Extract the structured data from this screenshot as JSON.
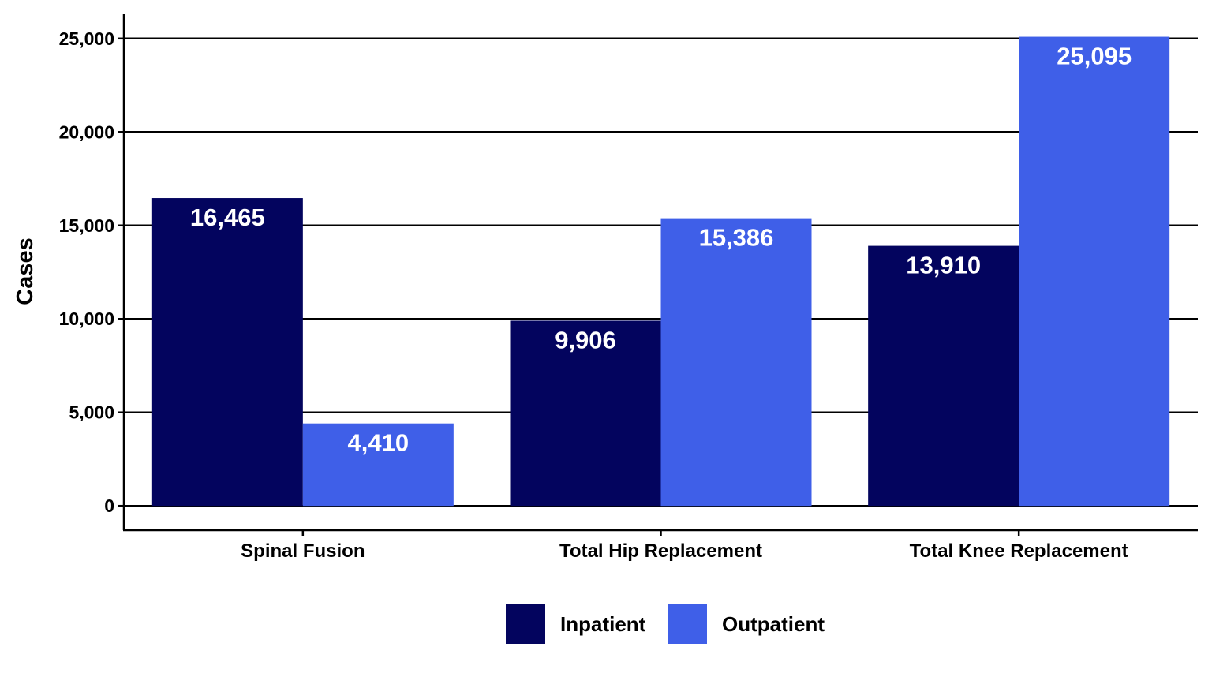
{
  "chart_data": {
    "type": "bar",
    "title": "",
    "xlabel": "",
    "ylabel": "Cases",
    "categories": [
      "Spinal Fusion",
      "Total Hip Replacement",
      "Total Knee Replacement"
    ],
    "series": [
      {
        "name": "Inpatient",
        "color": "#03045e",
        "values": [
          16465,
          9906,
          13910
        ],
        "labels": [
          "16,465",
          "9,906",
          "13,910"
        ]
      },
      {
        "name": "Outpatient",
        "color": "#3f5fe8",
        "values": [
          4410,
          15386,
          25095
        ],
        "labels": [
          "4,410",
          "15,386",
          "25,095"
        ]
      }
    ],
    "ylim": [
      -1300,
      26300
    ],
    "yticks": [
      0,
      5000,
      10000,
      15000,
      20000,
      25000
    ],
    "ytick_labels": [
      "0",
      "5,000",
      "10,000",
      "15,000",
      "20,000",
      "25,000"
    ],
    "grid": "horizontal",
    "legend_position": "bottom"
  }
}
